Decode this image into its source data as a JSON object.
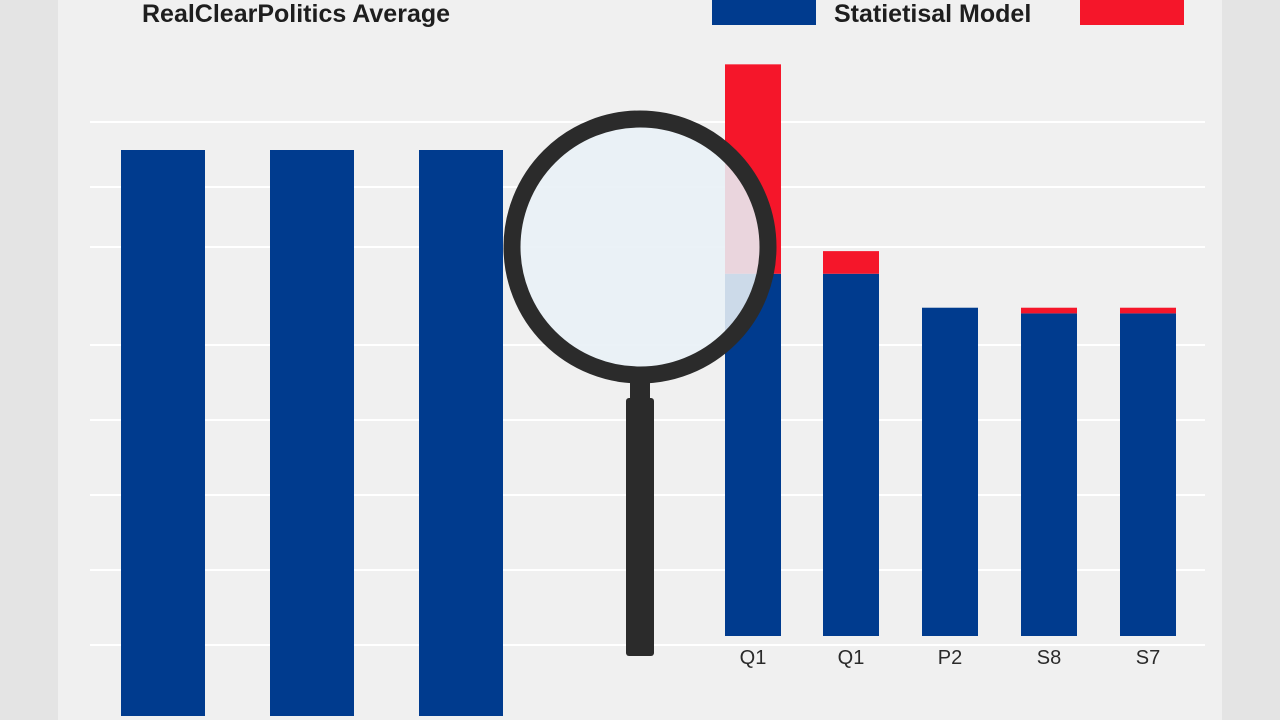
{
  "chart_data": {
    "type": "bar",
    "stacked": true,
    "title_left": "RealClearPolitics Average",
    "legend_position": "top",
    "grid": true,
    "series": [
      {
        "name": "RealClearPolitics Average",
        "color": "#003b8e"
      },
      {
        "name": "Statietisal Model",
        "color": "#f5162a"
      }
    ],
    "categories": [
      "",
      "",
      "",
      "Q1",
      "Q1",
      "P2",
      "S8",
      "S7"
    ],
    "blue_values": [
      100,
      100,
      100,
      64,
      64,
      58,
      57,
      57
    ],
    "red_values": [
      0,
      0,
      0,
      37,
      4,
      0,
      1,
      1
    ],
    "ylim": [
      0,
      114
    ]
  }
}
